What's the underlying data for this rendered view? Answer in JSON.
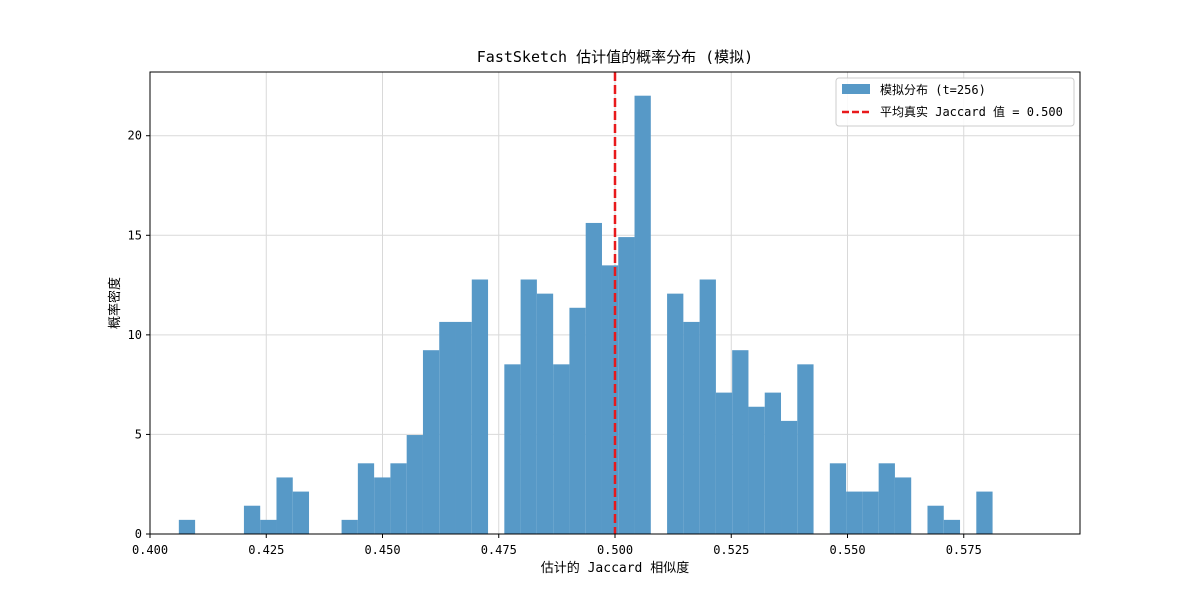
{
  "chart_data": {
    "type": "bar",
    "title": "FastSketch 估计值的概率分布 (模拟)",
    "xlabel": "估计的 Jaccard 相似度",
    "ylabel": "概率密度",
    "xlim": [
      0.4,
      0.6
    ],
    "ylim": [
      0,
      23.2
    ],
    "grid": true,
    "legend_position": "top-right",
    "bar_color": "#5799c7",
    "mean_line_color": "#e8191b",
    "x_ticks": [
      "0.400",
      "0.425",
      "0.450",
      "0.475",
      "0.500",
      "0.525",
      "0.550",
      "0.575"
    ],
    "x_tick_values": [
      0.4,
      0.425,
      0.45,
      0.475,
      0.5,
      0.525,
      0.55,
      0.575
    ],
    "y_ticks": [
      "0",
      "5",
      "10",
      "15",
      "20"
    ],
    "y_tick_values": [
      0,
      5,
      10,
      15,
      20
    ],
    "bin_width": 0.0035,
    "bins": [
      {
        "x": 0.4062,
        "density": 0.71
      },
      {
        "x": 0.4202,
        "density": 1.42
      },
      {
        "x": 0.4237,
        "density": 0.71
      },
      {
        "x": 0.4272,
        "density": 2.84
      },
      {
        "x": 0.4307,
        "density": 2.13
      },
      {
        "x": 0.4412,
        "density": 0.71
      },
      {
        "x": 0.4447,
        "density": 3.55
      },
      {
        "x": 0.4482,
        "density": 2.84
      },
      {
        "x": 0.4517,
        "density": 3.55
      },
      {
        "x": 0.4552,
        "density": 4.97
      },
      {
        "x": 0.4587,
        "density": 9.23
      },
      {
        "x": 0.4622,
        "density": 10.65
      },
      {
        "x": 0.4657,
        "density": 10.65
      },
      {
        "x": 0.4692,
        "density": 12.78
      },
      {
        "x": 0.4762,
        "density": 8.52
      },
      {
        "x": 0.4797,
        "density": 12.78
      },
      {
        "x": 0.4832,
        "density": 12.07
      },
      {
        "x": 0.4867,
        "density": 8.52
      },
      {
        "x": 0.4902,
        "density": 11.36
      },
      {
        "x": 0.4937,
        "density": 15.62
      },
      {
        "x": 0.4972,
        "density": 13.49
      },
      {
        "x": 0.5007,
        "density": 14.91
      },
      {
        "x": 0.5042,
        "density": 22.01
      },
      {
        "x": 0.5112,
        "density": 12.07
      },
      {
        "x": 0.5147,
        "density": 10.65
      },
      {
        "x": 0.5182,
        "density": 12.78
      },
      {
        "x": 0.5217,
        "density": 7.1
      },
      {
        "x": 0.5252,
        "density": 9.23
      },
      {
        "x": 0.5287,
        "density": 6.39
      },
      {
        "x": 0.5322,
        "density": 7.1
      },
      {
        "x": 0.5357,
        "density": 5.68
      },
      {
        "x": 0.5392,
        "density": 8.52
      },
      {
        "x": 0.5462,
        "density": 3.55
      },
      {
        "x": 0.5497,
        "density": 2.13
      },
      {
        "x": 0.5532,
        "density": 2.13
      },
      {
        "x": 0.5567,
        "density": 3.55
      },
      {
        "x": 0.5602,
        "density": 2.84
      },
      {
        "x": 0.5672,
        "density": 1.42
      },
      {
        "x": 0.5707,
        "density": 0.71
      },
      {
        "x": 0.5777,
        "density": 2.13
      }
    ],
    "mean_line": {
      "x": 0.5,
      "label": "平均真实 Jaccard 值 = 0.500"
    },
    "legend": [
      {
        "name": "模拟分布 (t=256)",
        "kind": "bar",
        "color": "#5799c7"
      },
      {
        "name": "平均真实 Jaccard 值 = 0.500",
        "kind": "dashed-line",
        "color": "#e8191b"
      }
    ]
  }
}
